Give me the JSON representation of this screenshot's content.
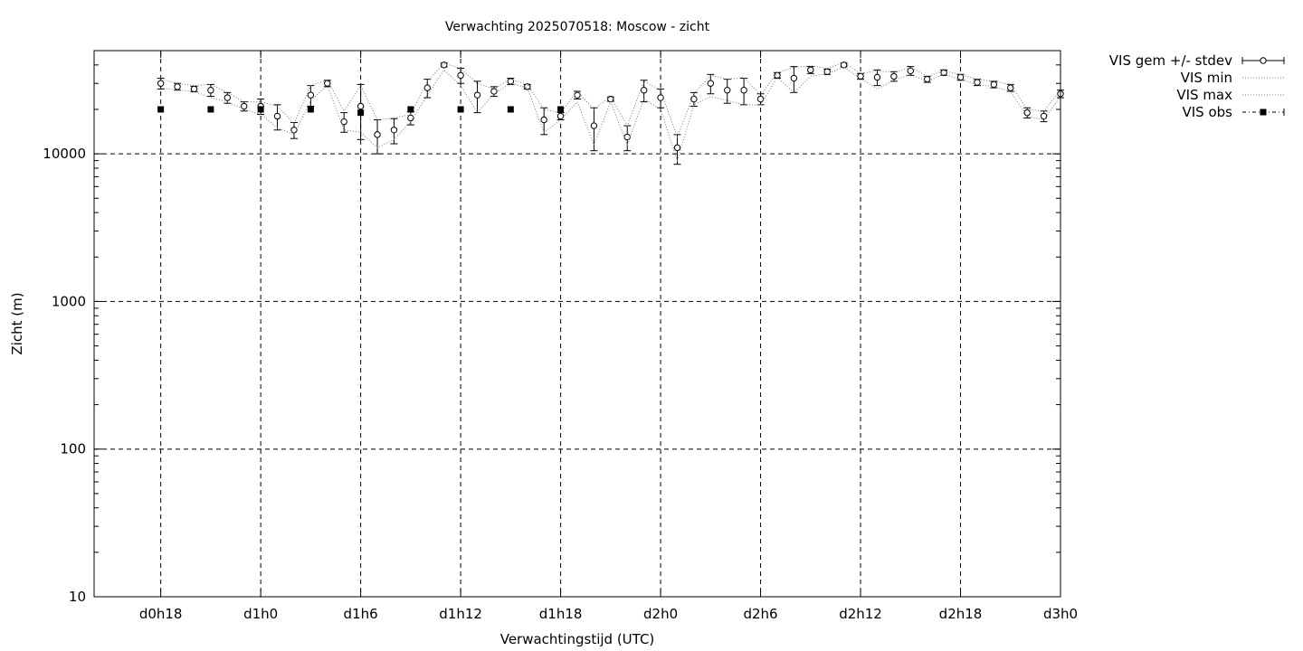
{
  "chart_data": {
    "type": "line",
    "title": "Verwachting 2025070518: Moscow - zicht",
    "xlabel": "Verwachtingstijd (UTC)",
    "ylabel": "Zicht (m)",
    "y_scale": "log",
    "ylim": [
      10,
      50000
    ],
    "y_ticks": [
      10,
      100,
      1000,
      10000
    ],
    "y_tick_labels": [
      "10",
      "100",
      "1000",
      "10000"
    ],
    "x_unit": "hours since d0h0",
    "xlim": [
      14,
      72
    ],
    "x_ticks": [
      18,
      24,
      30,
      36,
      42,
      48,
      54,
      60,
      66,
      72
    ],
    "x_tick_labels": [
      "d0h18",
      "d1h0",
      "d1h6",
      "d1h12",
      "d1h18",
      "d2h0",
      "d2h6",
      "d2h12",
      "d2h18",
      "d3h0"
    ],
    "grid": true,
    "legend_position": "outside-top-right",
    "series": [
      {
        "name": "VIS gem +/- stdev",
        "style": "open-circle-errorbar",
        "x": [
          18,
          19,
          20,
          21,
          22,
          23,
          24,
          25,
          26,
          27,
          28,
          29,
          30,
          31,
          32,
          33,
          34,
          35,
          36,
          37,
          38,
          39,
          40,
          41,
          42,
          43,
          44,
          45,
          46,
          47,
          48,
          49,
          50,
          51,
          52,
          53,
          54,
          55,
          56,
          57,
          58,
          59,
          60,
          61,
          62,
          63,
          64,
          65,
          66,
          67,
          68,
          69,
          70,
          71,
          72
        ],
        "values": [
          30000,
          28500,
          27500,
          27000,
          24000,
          21000,
          21000,
          18000,
          14500,
          25000,
          30000,
          16500,
          21000,
          13500,
          14500,
          17500,
          28000,
          40000,
          34000,
          25000,
          26500,
          31000,
          28500,
          17000,
          18000,
          25000,
          15500,
          23500,
          13000,
          27000,
          24000,
          11000,
          23500,
          30000,
          27000,
          27000,
          23500,
          34000,
          32500,
          37000,
          36000,
          40000,
          33500,
          33000,
          33500,
          36500,
          32000,
          35500,
          33000,
          30500,
          29500,
          28000,
          19000,
          18000,
          25500
        ],
        "err": [
          2500,
          1500,
          1200,
          2500,
          2000,
          1500,
          2500,
          3500,
          1800,
          4000,
          1500,
          2500,
          8500,
          3500,
          2800,
          1800,
          4000,
          1200,
          4000,
          6000,
          2000,
          1500,
          1000,
          3500,
          1000,
          1500,
          5000,
          800,
          2500,
          4500,
          3500,
          2500,
          2500,
          4500,
          5000,
          5500,
          2000,
          1500,
          6500,
          2000,
          1500,
          1200,
          1500,
          4000,
          2500,
          2500,
          1500,
          1500,
          1500,
          1500,
          1500,
          1500,
          1500,
          1500,
          1500
        ]
      },
      {
        "name": "VIS min",
        "style": "dotted",
        "x": [
          18,
          19,
          20,
          21,
          22,
          23,
          24,
          25,
          26,
          27,
          28,
          29,
          30,
          31,
          32,
          33,
          34,
          35,
          36,
          37,
          38,
          39,
          40,
          41,
          42,
          43,
          44,
          45,
          46,
          47,
          48,
          49,
          50,
          51,
          52,
          53,
          54,
          55,
          56,
          57,
          58,
          59,
          60,
          61,
          62,
          63,
          64,
          65,
          66,
          67,
          68,
          69,
          70,
          71,
          72
        ],
        "values": [
          28000,
          27000,
          26500,
          24000,
          22500,
          20000,
          18500,
          15000,
          13500,
          23000,
          29000,
          14500,
          14000,
          11000,
          12500,
          16500,
          25000,
          37000,
          29000,
          19000,
          25500,
          30000,
          28000,
          14000,
          17000,
          22500,
          11500,
          22500,
          11500,
          23500,
          20000,
          9000,
          21500,
          24500,
          23000,
          21500,
          21500,
          33000,
          26000,
          33500,
          35000,
          38500,
          32500,
          27500,
          31500,
          34500,
          31000,
          34500,
          32000,
          29500,
          28500,
          26500,
          18000,
          17000,
          24500
        ]
      },
      {
        "name": "VIS max",
        "style": "dotted",
        "x": [
          18,
          19,
          20,
          21,
          22,
          23,
          24,
          25,
          26,
          27,
          28,
          29,
          30,
          31,
          32,
          33,
          34,
          35,
          36,
          37,
          38,
          39,
          40,
          41,
          42,
          43,
          44,
          45,
          46,
          47,
          48,
          49,
          50,
          51,
          52,
          53,
          54,
          55,
          56,
          57,
          58,
          59,
          60,
          61,
          62,
          63,
          64,
          65,
          66,
          67,
          68,
          69,
          70,
          71,
          72
        ],
        "values": [
          32000,
          30000,
          29000,
          29500,
          26000,
          22500,
          22500,
          21000,
          16000,
          29000,
          31500,
          19500,
          29000,
          17000,
          17500,
          18500,
          31000,
          41000,
          38000,
          30000,
          27500,
          32000,
          29500,
          20000,
          19000,
          26500,
          20000,
          24500,
          15500,
          31000,
          27000,
          13000,
          25500,
          34000,
          32000,
          33000,
          25000,
          35500,
          38500,
          39500,
          38000,
          41500,
          35000,
          36500,
          35500,
          38500,
          33500,
          36500,
          34500,
          32000,
          31000,
          29500,
          20000,
          19500,
          27000
        ]
      },
      {
        "name": "VIS obs",
        "style": "filled-square",
        "x": [
          18,
          21,
          24,
          27,
          30,
          33,
          36,
          39,
          42
        ],
        "values": [
          20000,
          20000,
          20000,
          20000,
          19000,
          20000,
          20000,
          20000,
          20000
        ]
      }
    ]
  }
}
